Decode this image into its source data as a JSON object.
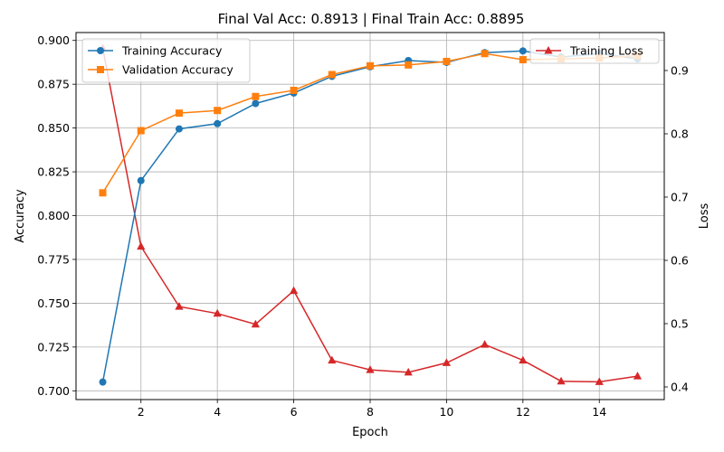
{
  "chart_data": {
    "type": "line",
    "title": "Final Val Acc: 0.8913 | Final Train Acc: 0.8895",
    "xlabel": "Epoch",
    "ylabel": "Accuracy",
    "y2label": "Loss",
    "x": [
      1,
      2,
      3,
      4,
      5,
      6,
      7,
      8,
      9,
      10,
      11,
      12,
      13,
      14,
      15
    ],
    "xlim": [
      0.3,
      15.7
    ],
    "ylim": [
      0.695,
      0.9045
    ],
    "y2lim": [
      0.38,
      0.96
    ],
    "xticks": [
      2,
      4,
      6,
      8,
      10,
      12,
      14
    ],
    "yticks": [
      0.7,
      0.725,
      0.75,
      0.775,
      0.8,
      0.825,
      0.85,
      0.875,
      0.9
    ],
    "y2ticks": [
      0.4,
      0.5,
      0.6,
      0.7,
      0.8,
      0.9
    ],
    "grid": true,
    "series": [
      {
        "name": "Training Accuracy",
        "axis": "left",
        "color": "#1f77b4",
        "marker": "circle",
        "values": [
          0.705,
          0.82,
          0.8495,
          0.8525,
          0.864,
          0.87,
          0.8795,
          0.885,
          0.8885,
          0.8875,
          0.893,
          0.894,
          0.8905,
          0.8925,
          0.8895
        ]
      },
      {
        "name": "Validation Accuracy",
        "axis": "left",
        "color": "#ff7f0e",
        "marker": "square",
        "values": [
          0.813,
          0.8485,
          0.8585,
          0.86,
          0.868,
          0.8715,
          0.8805,
          0.8855,
          0.886,
          0.888,
          0.8925,
          0.889,
          0.8895,
          0.89,
          0.8913
        ]
      },
      {
        "name": "Training Loss",
        "axis": "right",
        "color": "#d62728",
        "marker": "triangle",
        "values": [
          0.935,
          0.622,
          0.527,
          0.516,
          0.499,
          0.552,
          0.442,
          0.427,
          0.423,
          0.438,
          0.467,
          0.442,
          0.409,
          0.408,
          0.417
        ]
      }
    ],
    "legend_left": {
      "placement": "upper-left",
      "entries": [
        "Training Accuracy",
        "Validation Accuracy"
      ]
    },
    "legend_right": {
      "placement": "upper-right",
      "entries": [
        "Training Loss"
      ]
    }
  }
}
